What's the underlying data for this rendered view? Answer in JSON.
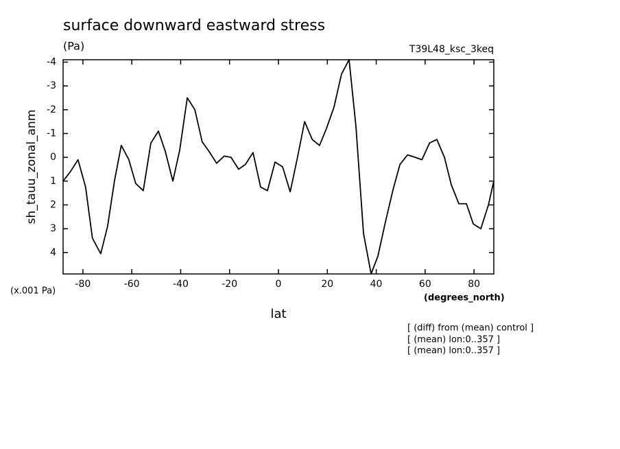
{
  "chart_data": {
    "type": "line",
    "title": "surface downward eastward stress",
    "subtitle": "(Pa)",
    "run_label": "T39L48_ksc_3keq",
    "y_label": "sh_tauu_zonal_anm",
    "y_unit": "(x.001 Pa)",
    "x_label": "lat",
    "x_unit": "(degrees_north)",
    "notes": [
      "[ (diff) from (mean) control ]",
      "[ (mean) lon:0..357 ]",
      "[ (mean) lon:0..357 ]"
    ],
    "color": "#000000",
    "x": [
      -88.1,
      -85.1,
      -82,
      -78.9,
      -76.1,
      -72.7,
      -69.9,
      -67.1,
      -64.3,
      -61.2,
      -58.4,
      -55.3,
      -52.2,
      -49.1,
      -46.3,
      -43.2,
      -40.4,
      -37.3,
      -34.2,
      -31.2,
      -28.4,
      -25.3,
      -22.2,
      -19.4,
      -16.3,
      -13.5,
      -10.4,
      -7.3,
      -4.5,
      -1.4,
      1.7,
      4.8,
      7.6,
      10.7,
      13.8,
      16.8,
      19.6,
      22.7,
      25.8,
      28.9,
      31.7,
      34.8,
      37.9,
      40.7,
      43.8,
      46.9,
      49.7,
      52.8,
      55.9,
      58.7,
      61.8,
      64.8,
      67.9,
      70.7,
      73.8,
      76.9,
      79.7,
      82.8,
      85.9,
      88.1
    ],
    "values": [
      1.0,
      0.6,
      0.1,
      1.25,
      3.4,
      4.05,
      2.9,
      1.0,
      -0.5,
      0.1,
      1.1,
      1.4,
      -0.6,
      -1.1,
      -0.25,
      1.0,
      -0.3,
      -2.5,
      -2.0,
      -0.65,
      -0.25,
      0.25,
      -0.05,
      0,
      0.5,
      0.3,
      -0.2,
      1.25,
      1.4,
      0.2,
      0.4,
      1.45,
      0.1,
      -1.5,
      -0.75,
      -0.5,
      -1.2,
      -2.1,
      -3.5,
      -4.1,
      -1.3,
      3.2,
      4.9,
      4.15,
      2.7,
      1.35,
      0.3,
      -0.1,
      0,
      0.1,
      -0.6,
      -0.75,
      0,
      1.15,
      1.95,
      1.95,
      2.8,
      3.0,
      2.0,
      1.0
    ],
    "xlim": [
      -88.1,
      88.1
    ],
    "xticks": [
      -80,
      -60,
      -40,
      -20,
      0,
      20,
      40,
      60,
      80
    ],
    "ylim": [
      -4.1,
      4.9
    ],
    "yticks": [
      -4,
      -3,
      -2,
      -1,
      0,
      1,
      2,
      3,
      4
    ],
    "y_inverted": true,
    "grid": false
  }
}
